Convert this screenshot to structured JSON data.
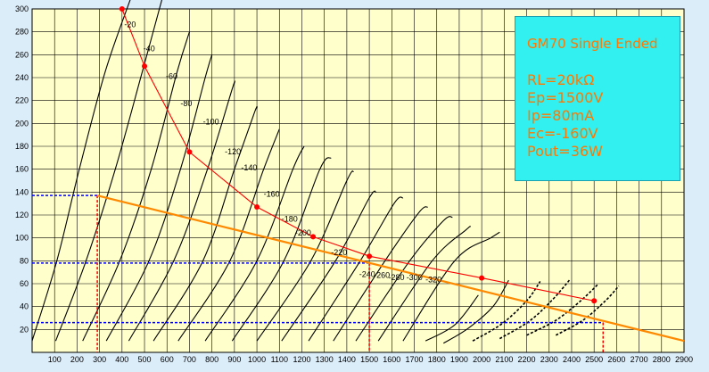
{
  "chart_data": {
    "type": "line",
    "title": "",
    "xlabel": "",
    "ylabel": "",
    "xlim": [
      0,
      2900
    ],
    "ylim": [
      0,
      300
    ],
    "grid": true,
    "x_ticks": [
      100,
      200,
      300,
      400,
      500,
      600,
      700,
      800,
      900,
      1000,
      1100,
      1200,
      1300,
      1400,
      1500,
      1600,
      1700,
      1800,
      1900,
      2000,
      2100,
      2200,
      2300,
      2400,
      2500,
      2600,
      2700,
      2800,
      2900
    ],
    "y_ticks": [
      20,
      40,
      60,
      80,
      100,
      120,
      140,
      160,
      180,
      200,
      220,
      240,
      260,
      280,
      300
    ],
    "plate_curves": [
      {
        "label": "-20",
        "points": [
          [
            0,
            10
          ],
          [
            110,
            80
          ],
          [
            210,
            160
          ],
          [
            325,
            245
          ],
          [
            440,
            310
          ]
        ],
        "style": "solid"
      },
      {
        "label": "-40",
        "points": [
          [
            105,
            10
          ],
          [
            240,
            80
          ],
          [
            370,
            160
          ],
          [
            490,
            245
          ],
          [
            580,
            310
          ]
        ],
        "style": "solid"
      },
      {
        "label": "-60",
        "points": [
          [
            225,
            10
          ],
          [
            390,
            80
          ],
          [
            530,
            160
          ],
          [
            645,
            245
          ],
          [
            700,
            280
          ]
        ],
        "style": "solid"
      },
      {
        "label": "-80",
        "points": [
          [
            330,
            10
          ],
          [
            520,
            80
          ],
          [
            660,
            160
          ],
          [
            770,
            240
          ],
          [
            800,
            260
          ]
        ],
        "style": "solid"
      },
      {
        "label": "-100",
        "points": [
          [
            430,
            10
          ],
          [
            630,
            80
          ],
          [
            780,
            160
          ],
          [
            890,
            230
          ],
          [
            900,
            235
          ]
        ],
        "style": "solid"
      },
      {
        "label": "-120",
        "points": [
          [
            540,
            10
          ],
          [
            760,
            80
          ],
          [
            900,
            160
          ],
          [
            990,
            210
          ],
          [
            1000,
            213
          ]
        ],
        "style": "solid"
      },
      {
        "label": "-140",
        "points": [
          [
            650,
            10
          ],
          [
            880,
            80
          ],
          [
            1030,
            160
          ],
          [
            1100,
            195
          ]
        ],
        "style": "solid"
      },
      {
        "label": "-160",
        "points": [
          [
            770,
            10
          ],
          [
            1000,
            80
          ],
          [
            1160,
            160
          ],
          [
            1210,
            180
          ]
        ],
        "style": "solid"
      },
      {
        "label": "-180",
        "points": [
          [
            890,
            10
          ],
          [
            1120,
            80
          ],
          [
            1280,
            160
          ],
          [
            1330,
            170
          ]
        ],
        "style": "solid"
      },
      {
        "label": "-200",
        "points": [
          [
            1000,
            10
          ],
          [
            1240,
            80
          ],
          [
            1400,
            150
          ],
          [
            1430,
            158
          ]
        ],
        "style": "solid"
      },
      {
        "label": "-220",
        "points": [
          [
            1110,
            10
          ],
          [
            1350,
            80
          ],
          [
            1500,
            135
          ],
          [
            1530,
            140
          ]
        ],
        "style": "solid"
      },
      {
        "label": "-240",
        "points": [
          [
            1230,
            10
          ],
          [
            1460,
            80
          ],
          [
            1610,
            130
          ],
          [
            1650,
            135
          ]
        ],
        "style": "solid"
      },
      {
        "label": "-260",
        "points": [
          [
            1340,
            10
          ],
          [
            1570,
            80
          ],
          [
            1720,
            122
          ],
          [
            1760,
            127
          ]
        ],
        "style": "solid"
      },
      {
        "label": "-280",
        "points": [
          [
            1440,
            10
          ],
          [
            1680,
            80
          ],
          [
            1830,
            115
          ],
          [
            1870,
            118
          ]
        ],
        "style": "solid"
      },
      {
        "label": "-300",
        "points": [
          [
            1540,
            10
          ],
          [
            1780,
            80
          ],
          [
            1930,
            107
          ],
          [
            1950,
            110
          ]
        ],
        "style": "solid"
      },
      {
        "label": "-320",
        "points": [
          [
            1650,
            10
          ],
          [
            1880,
            80
          ],
          [
            2040,
            100
          ],
          [
            2080,
            105
          ]
        ],
        "style": "solid"
      }
    ],
    "plate_curves_right": [
      {
        "label": "-220",
        "points": [
          [
            1750,
            10
          ],
          [
            1880,
            24
          ],
          [
            1985,
            50
          ]
        ],
        "style": "solid"
      },
      {
        "label": "-240",
        "points": [
          [
            1830,
            8
          ],
          [
            1940,
            21
          ],
          [
            2050,
            40
          ],
          [
            2120,
            63
          ]
        ],
        "style": "solid"
      },
      {
        "label": "-260",
        "points": [
          [
            1960,
            10
          ],
          [
            2090,
            25
          ],
          [
            2200,
            45
          ],
          [
            2260,
            62
          ]
        ],
        "style": "dashed"
      },
      {
        "label": "-280",
        "points": [
          [
            2080,
            12
          ],
          [
            2210,
            27
          ],
          [
            2310,
            45
          ],
          [
            2390,
            63
          ]
        ],
        "style": "dashed"
      },
      {
        "label": "-300",
        "points": [
          [
            2200,
            15
          ],
          [
            2330,
            28
          ],
          [
            2440,
            45
          ],
          [
            2520,
            60
          ]
        ],
        "style": "dashed"
      },
      {
        "label": "-320",
        "points": [
          [
            2330,
            15
          ],
          [
            2450,
            28
          ],
          [
            2550,
            45
          ],
          [
            2610,
            58
          ]
        ],
        "style": "dashed"
      }
    ],
    "curve_labels": [
      {
        "text": "-20",
        "x": 620,
        "y": 284
      },
      {
        "text": "-40",
        "x": 790,
        "y": 263
      },
      {
        "text": "-60",
        "x": 990,
        "y": 239
      },
      {
        "text": "-80",
        "x": 1120,
        "y": 215
      },
      {
        "text": "-100",
        "x": 1320,
        "y": 199
      },
      {
        "text": "-120",
        "x": 1515,
        "y": 173
      },
      {
        "text": "-140",
        "x": 1660,
        "y": 159
      },
      {
        "text": "-160",
        "x": 1860,
        "y": 136
      },
      {
        "text": "-180",
        "x": 2020,
        "y": 114
      },
      {
        "text": "-200",
        "x": 2140,
        "y": 102
      },
      {
        "text": "-220",
        "x": 2460,
        "y": 85
      },
      {
        "text": "-240",
        "x": 2710,
        "y": 66
      },
      {
        "text": "-260",
        "x": 2840,
        "y": 65
      },
      {
        "text": "-280",
        "x": 2970,
        "y": 63
      },
      {
        "text": "-300",
        "x": 3130,
        "y": 63
      },
      {
        "text": "-320",
        "x": 3300,
        "y": 61
      }
    ],
    "max_dissipation": {
      "points": [
        [
          400,
          300
        ],
        [
          500,
          250
        ],
        [
          700,
          175
        ],
        [
          1000,
          127
        ],
        [
          1250,
          101
        ],
        [
          1500,
          84
        ],
        [
          2000,
          65
        ],
        [
          2500,
          45
        ]
      ],
      "color": "#ff0000"
    },
    "load_line": {
      "points": [
        [
          290,
          137
        ],
        [
          2900,
          10
        ]
      ],
      "color": "#ff8800"
    },
    "guide_lines": {
      "horizontal": [
        137,
        78,
        26
      ],
      "vertical": [
        290,
        1500,
        2540
      ],
      "h_color": "#0000ff",
      "v_color": "#ff0000"
    },
    "info_box": {
      "title": "GM70 Single Ended",
      "lines": [
        "RL=20kΩ",
        "Ep=1500V",
        "Ip=80mA",
        "Ec=-160V",
        "Pout=36W"
      ],
      "background": "#33f0f0",
      "text_color": "#ff7700"
    },
    "colors": {
      "plot_bg": "#ffffcc",
      "outer_bg": "#dcedfa",
      "grid": "#000000"
    }
  }
}
